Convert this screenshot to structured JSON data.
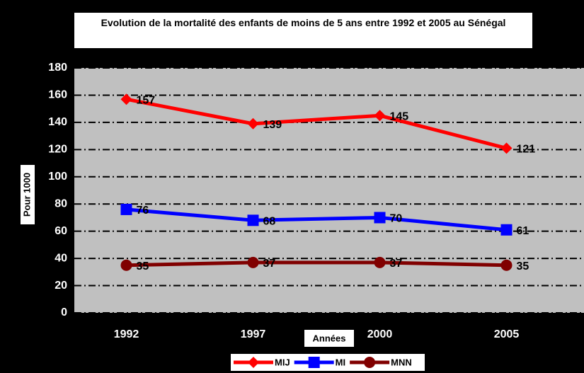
{
  "chart_data": {
    "type": "line",
    "title": "Evolution de la mortalité des enfants de moins de 5 ans entre 1992 et 2005 au Sénégal",
    "xlabel": "Années",
    "ylabel": "Pour 1000",
    "categories": [
      "1992",
      "1997",
      "2000",
      "2005"
    ],
    "series": [
      {
        "name": "MIJ",
        "color": "#ff0000",
        "marker": "diamond",
        "values": [
          157,
          139,
          145,
          121
        ]
      },
      {
        "name": "MI",
        "color": "#0000ff",
        "marker": "square",
        "values": [
          76,
          68,
          70,
          61
        ]
      },
      {
        "name": "MNN",
        "color": "#800000",
        "marker": "circle",
        "values": [
          35,
          37,
          37,
          35
        ]
      }
    ],
    "ylim": [
      0,
      180
    ],
    "yticks": [
      0,
      20,
      40,
      60,
      80,
      100,
      120,
      140,
      160,
      180
    ],
    "grid": true,
    "legend": "bottom"
  }
}
